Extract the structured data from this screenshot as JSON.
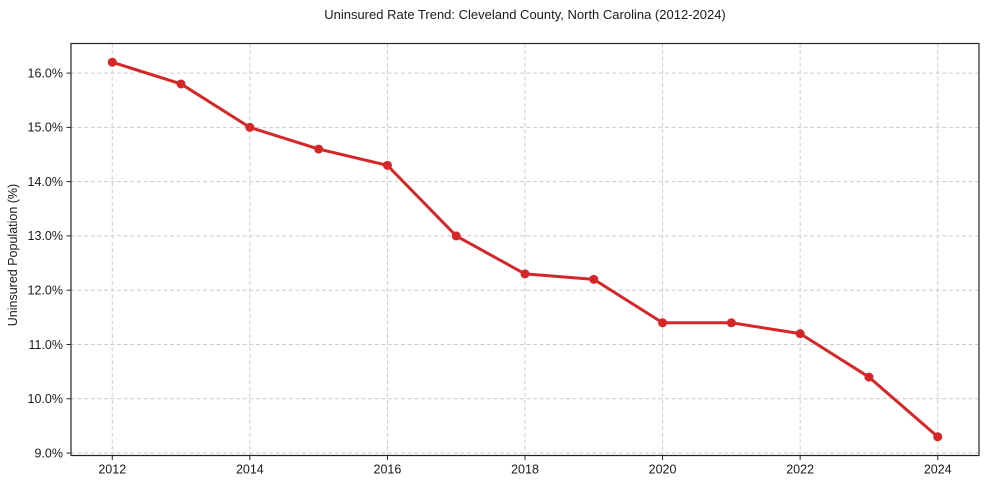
{
  "chart_data": {
    "type": "line",
    "title": "Uninsured Rate Trend: Cleveland County, North Carolina (2012-2024)",
    "xlabel": "",
    "ylabel": "Uninsured Population (%)",
    "x": [
      2012,
      2013,
      2014,
      2015,
      2016,
      2017,
      2018,
      2019,
      2020,
      2021,
      2022,
      2023,
      2024
    ],
    "values": [
      16.2,
      15.8,
      15.0,
      14.6,
      14.3,
      13.0,
      12.3,
      12.2,
      11.4,
      11.4,
      11.2,
      10.4,
      9.3
    ],
    "xlim": [
      2011.4,
      2024.6
    ],
    "ylim": [
      8.955,
      16.545
    ],
    "x_ticks": [
      2012,
      2014,
      2016,
      2018,
      2020,
      2022,
      2024
    ],
    "x_tick_labels": [
      "2012",
      "2014",
      "2016",
      "2018",
      "2020",
      "2022",
      "2024"
    ],
    "y_ticks": [
      9,
      10,
      11,
      12,
      13,
      14,
      15,
      16
    ],
    "y_tick_labels": [
      "9.0%",
      "10.0%",
      "11.0%",
      "12.0%",
      "13.0%",
      "14.0%",
      "15.0%",
      "16.0%"
    ],
    "grid": true,
    "grid_style": "dashed",
    "grid_color": "#cccccc",
    "line_color": "#d62728",
    "line_width": 3,
    "marker": "circle",
    "marker_size": 9,
    "legend": null
  }
}
